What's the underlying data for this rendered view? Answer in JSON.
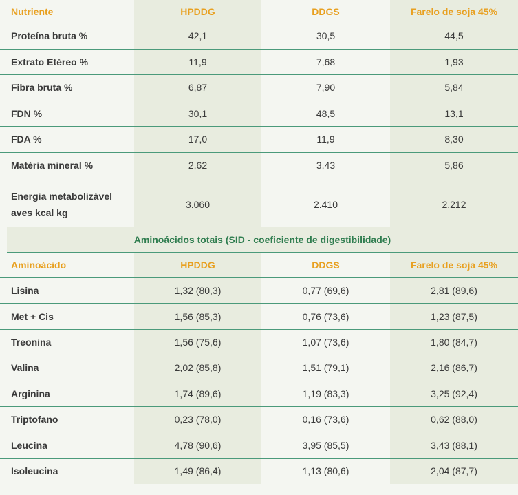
{
  "table1": {
    "headers": [
      "Nutriente",
      "HPDDG",
      "DDGS",
      "Farelo de soja 45%"
    ],
    "rows": [
      [
        "Proteína bruta %",
        "42,1",
        "30,5",
        "44,5"
      ],
      [
        "Extrato Etéreo %",
        "11,9",
        "7,68",
        "1,93"
      ],
      [
        "Fibra bruta %",
        "6,87",
        "7,90",
        "5,84"
      ],
      [
        "FDN %",
        "30,1",
        "48,5",
        "13,1"
      ],
      [
        "FDA %",
        "17,0",
        "11,9",
        "8,30"
      ],
      [
        "Matéria mineral %",
        "2,62",
        "3,43",
        "5,86"
      ]
    ],
    "last_row": {
      "label_line1": "Energia metabolizável",
      "label_line2": "aves kcal kg",
      "values": [
        "3.060",
        "2.410",
        "2.212"
      ]
    }
  },
  "table2": {
    "section_title": "Aminoácidos totais (SID - coeficiente de digestibilidade)",
    "headers": [
      "Aminoácido",
      "HPDDG",
      "DDGS",
      "Farelo de soja 45%"
    ],
    "rows": [
      [
        "Lisina",
        "1,32 (80,3)",
        "0,77 (69,6)",
        "2,81 (89,6)"
      ],
      [
        "Met + Cis",
        "1,56 (85,3)",
        "0,76 (73,6)",
        "1,23 (87,5)"
      ],
      [
        "Treonina",
        "1,56 (75,6)",
        "1,07 (73,6)",
        "1,80 (84,7)"
      ],
      [
        "Valina",
        "2,02 (85,8)",
        "1,51 (79,1)",
        "2,16 (86,7)"
      ],
      [
        "Arginina",
        "1,74 (89,6)",
        "1,19 (83,3)",
        "3,25 (92,4)"
      ],
      [
        "Triptofano",
        "0,23 (78,0)",
        "0,16 (73,6)",
        "0,62 (88,0)"
      ],
      [
        "Leucina",
        "4,78 (90,6)",
        "3,95 (85,5)",
        "3,43 (88,1)"
      ],
      [
        "Isoleucina",
        "1,49 (86,4)",
        "1,13 (80,6)",
        "2,04 (87,7)"
      ]
    ]
  }
}
